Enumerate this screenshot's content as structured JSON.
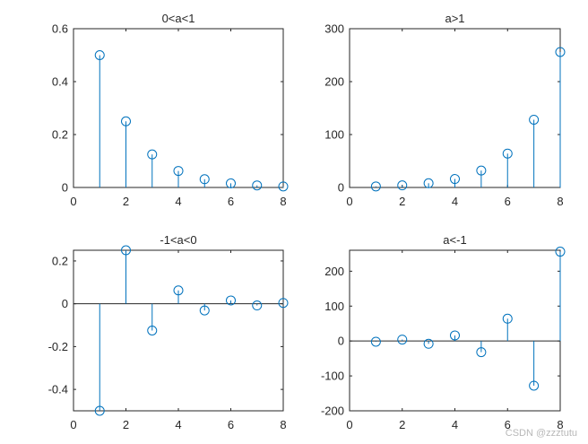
{
  "stem_color": "#0072BD",
  "axis_color": "#262626",
  "watermark": "CSDN @zzztutu",
  "chart_data": [
    {
      "type": "stem",
      "title": "0<a<1",
      "x": [
        1,
        2,
        3,
        4,
        5,
        6,
        7,
        8
      ],
      "y": [
        0.5,
        0.25,
        0.125,
        0.0625,
        0.03125,
        0.015625,
        0.0078125,
        0.00390625
      ],
      "xlim": [
        0,
        8
      ],
      "ylim": [
        0,
        0.6
      ],
      "xticks": [
        0,
        2,
        4,
        6,
        8
      ],
      "yticks": [
        0,
        0.2,
        0.4,
        0.6
      ],
      "xtick_labels": [
        "0",
        "2",
        "4",
        "6",
        "8"
      ],
      "ytick_labels": [
        "0",
        "0.2",
        "0.4",
        "0.6"
      ],
      "baseline": false
    },
    {
      "type": "stem",
      "title": "a>1",
      "x": [
        1,
        2,
        3,
        4,
        5,
        6,
        7,
        8
      ],
      "y": [
        2,
        4,
        8,
        16,
        32,
        64,
        128,
        256
      ],
      "xlim": [
        0,
        8
      ],
      "ylim": [
        0,
        300
      ],
      "xticks": [
        0,
        2,
        4,
        6,
        8
      ],
      "yticks": [
        0,
        100,
        200,
        300
      ],
      "xtick_labels": [
        "0",
        "2",
        "4",
        "6",
        "8"
      ],
      "ytick_labels": [
        "0",
        "100",
        "200",
        "300"
      ],
      "baseline": false
    },
    {
      "type": "stem",
      "title": "-1<a<0",
      "x": [
        1,
        2,
        3,
        4,
        5,
        6,
        7,
        8
      ],
      "y": [
        -0.5,
        0.25,
        -0.125,
        0.0625,
        -0.03125,
        0.015625,
        -0.0078125,
        0.00390625
      ],
      "xlim": [
        0,
        8
      ],
      "ylim": [
        -0.5,
        0.25
      ],
      "xticks": [
        0,
        2,
        4,
        6,
        8
      ],
      "yticks": [
        -0.4,
        -0.2,
        0,
        0.2
      ],
      "xtick_labels": [
        "0",
        "2",
        "4",
        "6",
        "8"
      ],
      "ytick_labels": [
        "-0.4",
        "-0.2",
        "0",
        "0.2"
      ],
      "baseline": true
    },
    {
      "type": "stem",
      "title": "a<-1",
      "x": [
        1,
        2,
        3,
        4,
        5,
        6,
        7,
        8
      ],
      "y": [
        -2,
        4,
        -8,
        16,
        -32,
        64,
        -128,
        256
      ],
      "xlim": [
        0,
        8
      ],
      "ylim": [
        -200,
        260
      ],
      "xticks": [
        0,
        2,
        4,
        6,
        8
      ],
      "yticks": [
        -200,
        -100,
        0,
        100,
        200
      ],
      "xtick_labels": [
        "0",
        "2",
        "4",
        "6",
        "8"
      ],
      "ytick_labels": [
        "-200",
        "-100",
        "0",
        "100",
        "200"
      ],
      "baseline": true
    }
  ]
}
